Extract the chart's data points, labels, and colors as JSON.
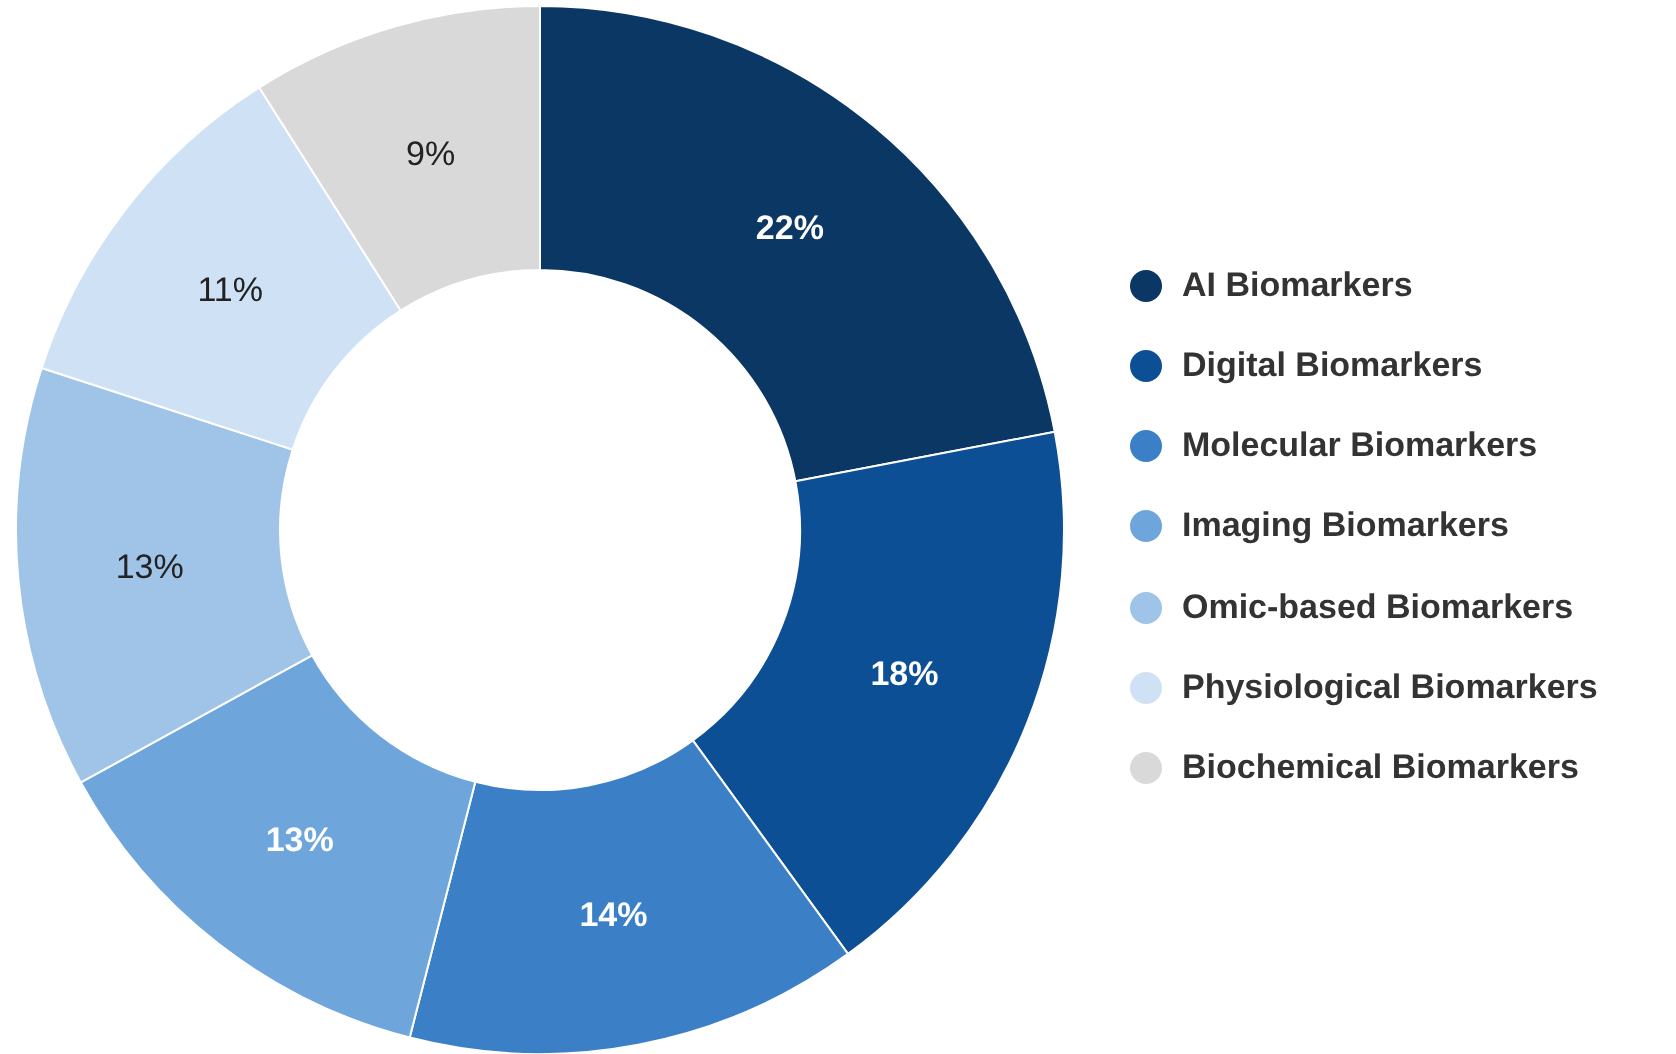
{
  "chart_data": {
    "type": "donut",
    "categories": [
      "AI Biomarkers",
      "Digital Biomarkers",
      "Molecular Biomarkers",
      "Imaging Biomarkers",
      "Omic-based Biomarkers",
      "Physiological Biomarkers",
      "Biochemical Biomarkers"
    ],
    "values": [
      22,
      18,
      14,
      13,
      13,
      11,
      9
    ],
    "colors": [
      "#0b3764",
      "#0d4f94",
      "#3b80c6",
      "#6ea6dc",
      "#9fc4e8",
      "#cfe1f4",
      "#d9d9d9"
    ],
    "value_labels": [
      "22%",
      "18%",
      "14%",
      "13%",
      "13%",
      "11%",
      "9%"
    ],
    "legend": "right"
  }
}
